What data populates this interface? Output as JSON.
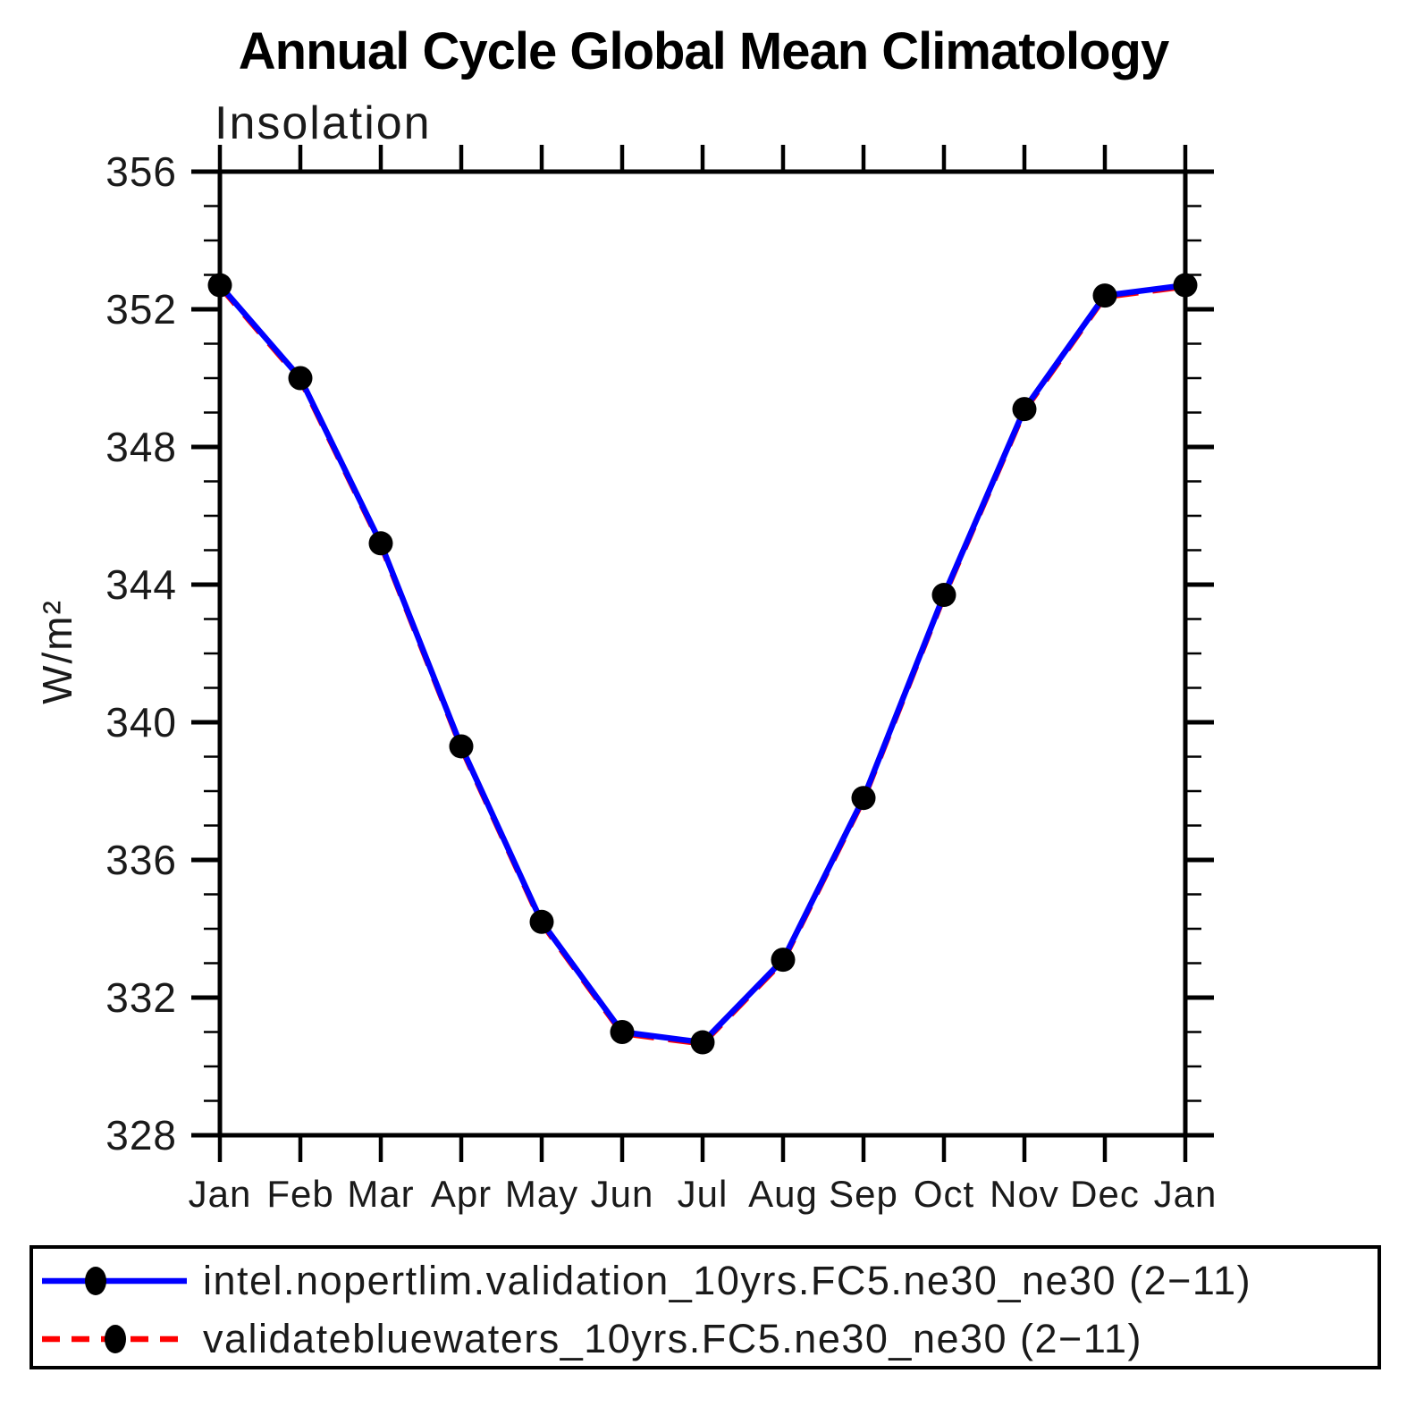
{
  "title": "Annual Cycle Global Mean Climatology",
  "plot": {
    "subtitle": "Insolation",
    "ylabel": "W/m²"
  },
  "legend": {
    "entries": [
      {
        "label": "intel.nopertlim.validation_10yrs.FC5.ne30_ne30 (2−11)",
        "color": "#0000ff",
        "line_style": "solid",
        "marker": "black-dot"
      },
      {
        "label": "validatebluewaters_10yrs.FC5.ne30_ne30 (2−11)",
        "color": "#ff0000",
        "line_style": "dashed",
        "marker": "black-dot"
      }
    ]
  },
  "chart_data": {
    "type": "line",
    "title": "Annual Cycle Global Mean Climatology",
    "subtitle": "Insolation",
    "xlabel": "",
    "ylabel": "W/m²",
    "categories": [
      "Jan",
      "Feb",
      "Mar",
      "Apr",
      "May",
      "Jun",
      "Jul",
      "Aug",
      "Sep",
      "Oct",
      "Nov",
      "Dec",
      "Jan"
    ],
    "series": [
      {
        "name": "intel.nopertlim.validation_10yrs.FC5.ne30_ne30 (2−11)",
        "color": "#0000ff",
        "style": "solid",
        "marker": "filled-circle",
        "marker_color": "#000000",
        "values": [
          352.7,
          350.0,
          345.2,
          339.3,
          334.2,
          331.0,
          330.7,
          333.1,
          337.8,
          343.7,
          349.1,
          352.4,
          352.7
        ]
      },
      {
        "name": "validatebluewaters_10yrs.FC5.ne30_ne30 (2−11)",
        "color": "#ff0000",
        "style": "dashed",
        "marker": "filled-circle",
        "marker_color": "#000000",
        "values": [
          352.7,
          350.0,
          345.2,
          339.3,
          334.2,
          331.0,
          330.7,
          333.1,
          337.8,
          343.7,
          349.1,
          352.4,
          352.7
        ]
      }
    ],
    "ylim": [
      328,
      356
    ],
    "yticks_major": [
      328,
      332,
      336,
      340,
      344,
      348,
      352,
      356
    ],
    "ytick_minor_step": 1,
    "grid": false,
    "legend_position": "bottom",
    "axis_color": "#000000",
    "background_color": "#ffffff"
  }
}
